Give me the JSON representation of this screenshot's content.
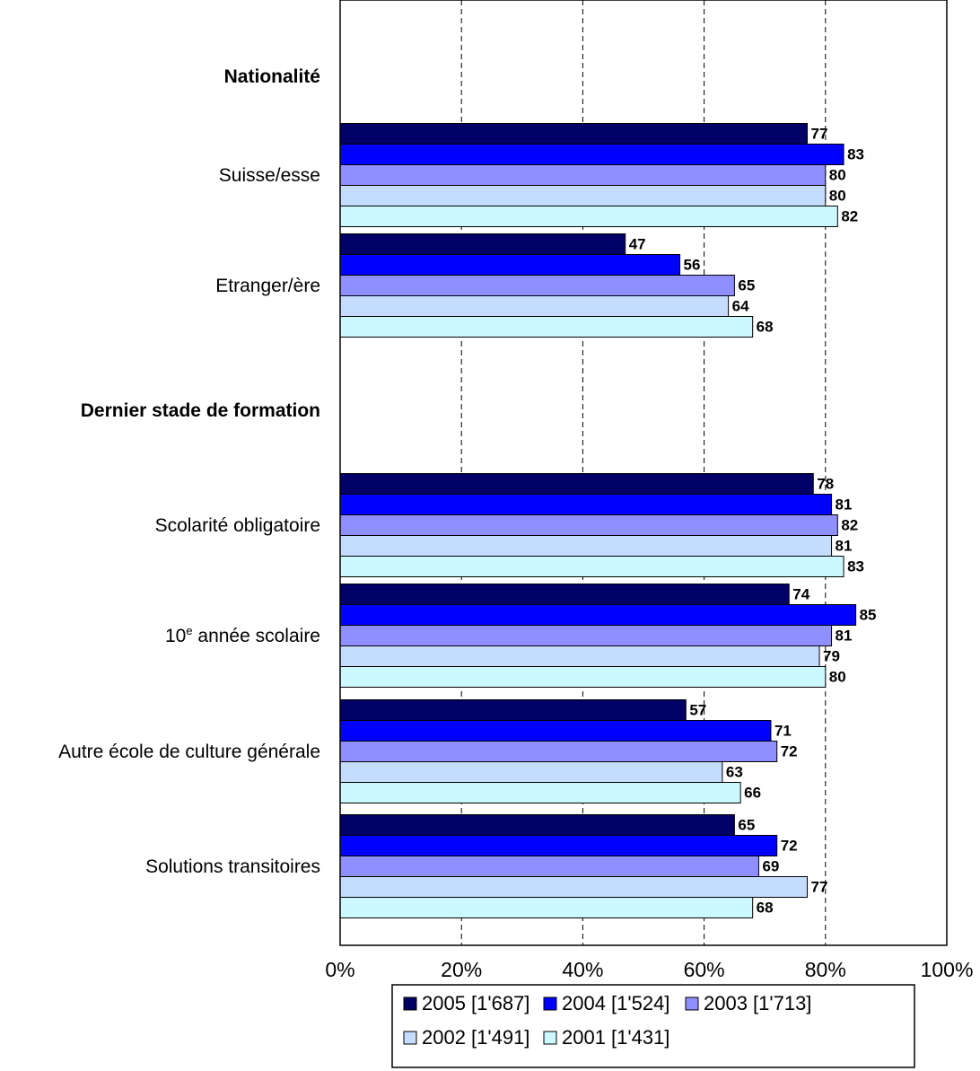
{
  "chart_data": {
    "type": "bar",
    "orientation": "horizontal",
    "title": "",
    "xlabel": "",
    "ylabel": "",
    "xlim": [
      0,
      100
    ],
    "x_ticks": [
      "0%",
      "20%",
      "40%",
      "60%",
      "80%",
      "100%"
    ],
    "grid": "vertical dashed",
    "legend_position": "bottom",
    "groups": [
      {
        "header": "Nationalité",
        "categories": [
          "Suisse/esse",
          "Etranger/ère"
        ]
      },
      {
        "header": "Dernier stade de formation",
        "categories": [
          "Scolarité obligatoire",
          "10e année scolaire",
          "Autre école de culture générale",
          "Solutions transitoires"
        ]
      }
    ],
    "categories": [
      "Suisse/esse",
      "Etranger/ère",
      "Scolarité obligatoire",
      "10e année scolaire",
      "Autre école de culture générale",
      "Solutions transitoires"
    ],
    "series": [
      {
        "name": "2005 [1'687]",
        "color": "#000066",
        "values": [
          77,
          47,
          78,
          74,
          57,
          65
        ]
      },
      {
        "name": "2004 [1'524]",
        "color": "#0000ff",
        "values": [
          83,
          56,
          81,
          85,
          71,
          72
        ]
      },
      {
        "name": "2003 [1'713]",
        "color": "#8f8fff",
        "values": [
          80,
          65,
          82,
          81,
          72,
          69
        ]
      },
      {
        "name": "2002 [1'491]",
        "color": "#c4dcff",
        "values": [
          80,
          64,
          81,
          79,
          63,
          77
        ]
      },
      {
        "name": "2001 [1'431]",
        "color": "#ccf9ff",
        "values": [
          82,
          68,
          83,
          80,
          66,
          68
        ]
      }
    ]
  }
}
